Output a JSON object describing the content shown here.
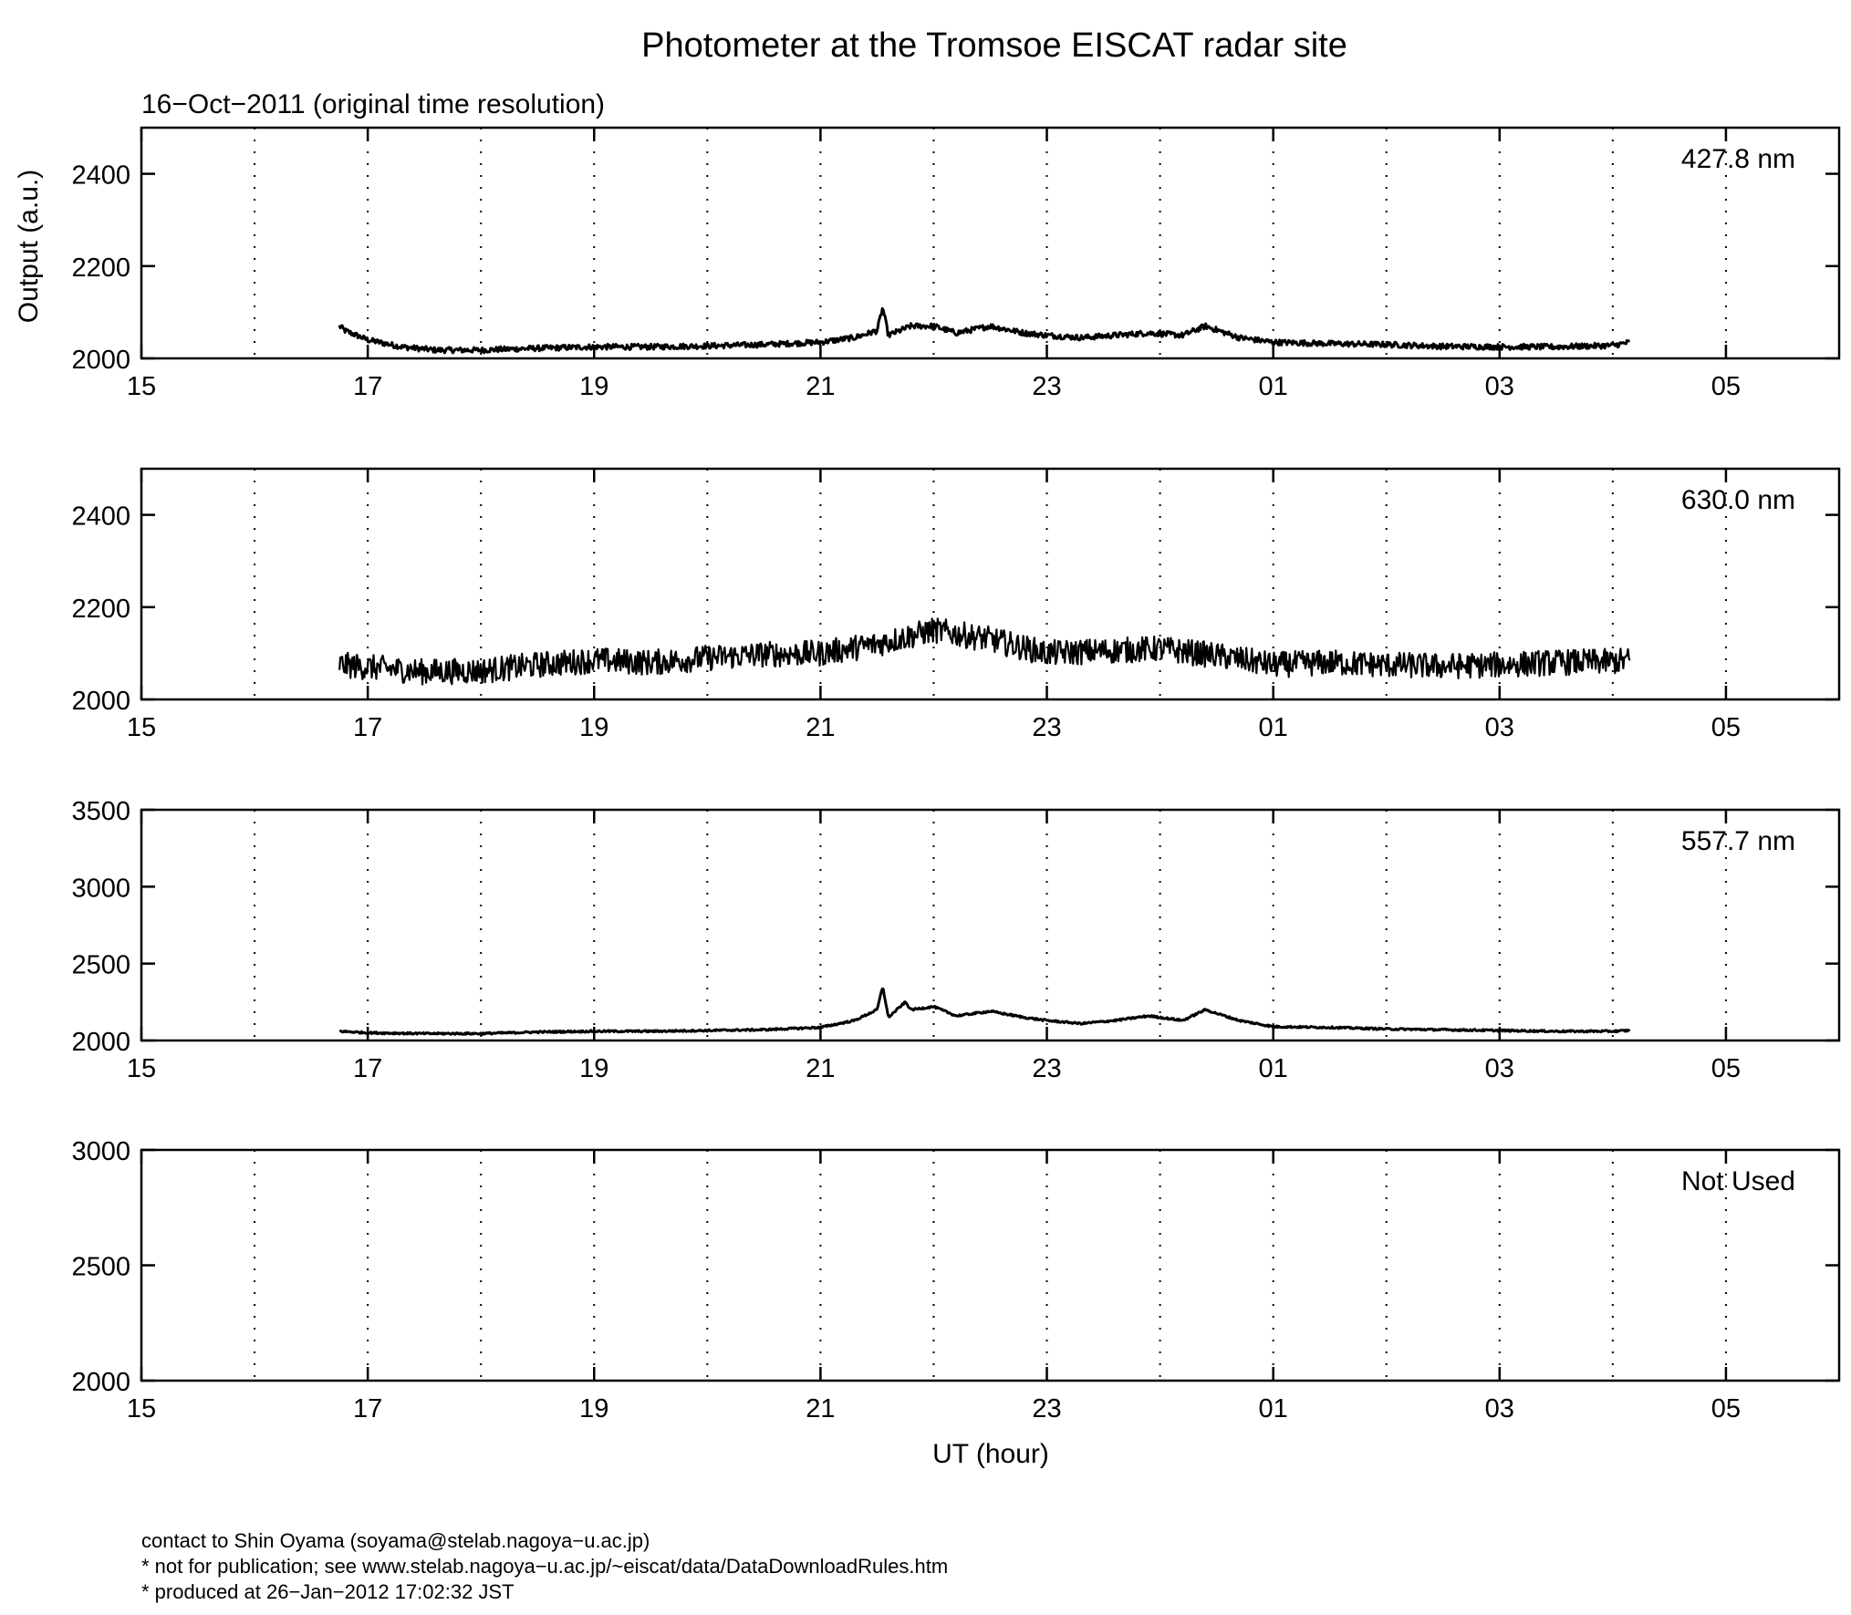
{
  "figure": {
    "title": "Photometer at the Tromsoe EISCAT radar site",
    "subtitle": "16−Oct−2011 (original time resolution)",
    "xlabel": "UT (hour)",
    "ylabel": "Output (a.u.)",
    "footer": [
      "contact to Shin Oyama (soyama@stelab.nagoya−u.ac.jp)",
      "* not for publication; see www.stelab.nagoya−u.ac.jp/~eiscat/data/DataDownloadRules.htm",
      "* produced at 26−Jan−2012 17:02:32 JST"
    ]
  },
  "chart_data": [
    {
      "type": "line",
      "label": "427.8 nm",
      "xlim": [
        15,
        30
      ],
      "ylim": [
        2000,
        2500
      ],
      "xticks": [
        "15",
        "17",
        "19",
        "21",
        "23",
        "01",
        "03",
        "05"
      ],
      "yticks": [
        2000,
        2200,
        2400
      ],
      "grid": "dotted vertical every hour",
      "data_range_hours": [
        16.75,
        28.15
      ],
      "series": [
        {
          "x": [
            16.75,
            16.8,
            17.0,
            17.3,
            17.6,
            18.0,
            18.5,
            19.0,
            19.5,
            20.0,
            20.5,
            21.0,
            21.3,
            21.5,
            21.55,
            21.6,
            21.8,
            22.0,
            22.2,
            22.5,
            22.8,
            23.0,
            23.3,
            23.6,
            23.9,
            24.2,
            24.4,
            24.7,
            25.0,
            25.5,
            26.0,
            26.5,
            27.0,
            27.5,
            28.0,
            28.15
          ],
          "y": [
            2070,
            2060,
            2040,
            2025,
            2018,
            2018,
            2022,
            2025,
            2025,
            2027,
            2030,
            2035,
            2045,
            2060,
            2110,
            2050,
            2070,
            2070,
            2055,
            2070,
            2055,
            2050,
            2045,
            2050,
            2055,
            2050,
            2070,
            2045,
            2035,
            2032,
            2030,
            2026,
            2025,
            2025,
            2028,
            2035
          ]
        }
      ]
    },
    {
      "type": "line",
      "label": "630.0 nm",
      "xlim": [
        15,
        30
      ],
      "ylim": [
        2000,
        2500
      ],
      "xticks": [
        "15",
        "17",
        "19",
        "21",
        "23",
        "01",
        "03",
        "05"
      ],
      "yticks": [
        2000,
        2200,
        2400
      ],
      "grid": "dotted vertical every hour",
      "data_range_hours": [
        16.75,
        28.15
      ],
      "series": [
        {
          "x": [
            16.75,
            17.0,
            17.5,
            18.0,
            18.5,
            19.0,
            19.5,
            20.0,
            20.5,
            21.0,
            21.5,
            22.0,
            22.5,
            23.0,
            23.5,
            24.0,
            24.5,
            25.0,
            25.5,
            26.0,
            26.5,
            27.0,
            27.5,
            28.0,
            28.15
          ],
          "y": [
            2075,
            2070,
            2060,
            2062,
            2075,
            2085,
            2080,
            2090,
            2098,
            2100,
            2120,
            2150,
            2130,
            2100,
            2105,
            2110,
            2095,
            2075,
            2080,
            2075,
            2072,
            2075,
            2080,
            2082,
            2085
          ]
        }
      ]
    },
    {
      "type": "line",
      "label": "557.7 nm",
      "xlim": [
        15,
        30
      ],
      "ylim": [
        2000,
        3500
      ],
      "xticks": [
        "15",
        "17",
        "19",
        "21",
        "23",
        "01",
        "03",
        "05"
      ],
      "yticks": [
        2000,
        2500,
        3000,
        3500
      ],
      "grid": "dotted vertical every hour",
      "data_range_hours": [
        16.75,
        28.15
      ],
      "series": [
        {
          "x": [
            16.75,
            17.0,
            17.5,
            18.0,
            18.5,
            19.0,
            19.5,
            20.0,
            20.5,
            21.0,
            21.3,
            21.5,
            21.55,
            21.6,
            21.75,
            21.8,
            22.0,
            22.2,
            22.5,
            22.8,
            23.0,
            23.3,
            23.6,
            23.9,
            24.2,
            24.4,
            24.7,
            25.0,
            25.5,
            26.0,
            26.5,
            27.0,
            27.5,
            28.0,
            28.15
          ],
          "y": [
            2060,
            2050,
            2045,
            2045,
            2055,
            2060,
            2060,
            2065,
            2070,
            2085,
            2130,
            2200,
            2350,
            2150,
            2250,
            2200,
            2220,
            2160,
            2190,
            2150,
            2130,
            2110,
            2130,
            2160,
            2130,
            2200,
            2130,
            2090,
            2085,
            2075,
            2070,
            2065,
            2060,
            2060,
            2065
          ]
        }
      ]
    },
    {
      "type": "line",
      "label": "Not Used",
      "xlim": [
        15,
        30
      ],
      "ylim": [
        2000,
        3000
      ],
      "xticks": [
        "15",
        "17",
        "19",
        "21",
        "23",
        "01",
        "03",
        "05"
      ],
      "yticks": [
        2000,
        2500,
        3000
      ],
      "grid": "dotted vertical every hour",
      "series": []
    }
  ]
}
